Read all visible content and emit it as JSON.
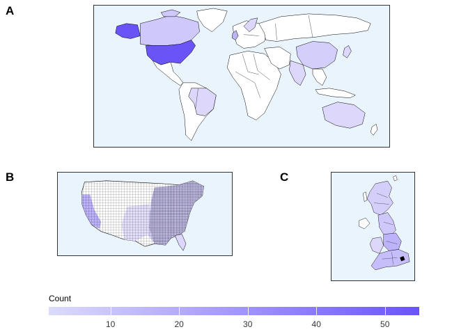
{
  "panels": {
    "a": {
      "label": "A"
    },
    "b": {
      "label": "B"
    },
    "c": {
      "label": "C"
    }
  },
  "legend": {
    "title": "Count",
    "min": 1,
    "max": 55,
    "ticks": [
      10,
      20,
      30,
      40,
      50
    ],
    "color_low": "#dcdbfb",
    "color_high": "#6a54f8"
  },
  "colors": {
    "ocean": "#eaf4fd",
    "land_no_data": "#ffffff",
    "border": "#000000"
  },
  "regions": {
    "world": [
      {
        "region": "United States",
        "count": 55
      },
      {
        "region": "Alaska",
        "count": 55
      },
      {
        "region": "Canada",
        "count": 15
      },
      {
        "region": "Brazil",
        "count": 8
      },
      {
        "region": "Australia",
        "count": 8
      },
      {
        "region": "China",
        "count": 10
      },
      {
        "region": "India",
        "count": 6
      },
      {
        "region": "United Kingdom",
        "count": 12
      },
      {
        "region": "Germany",
        "count": 8
      },
      {
        "region": "France",
        "count": 6
      },
      {
        "region": "Japan",
        "count": 5
      },
      {
        "region": "South Africa",
        "count": 3
      }
    ]
  }
}
